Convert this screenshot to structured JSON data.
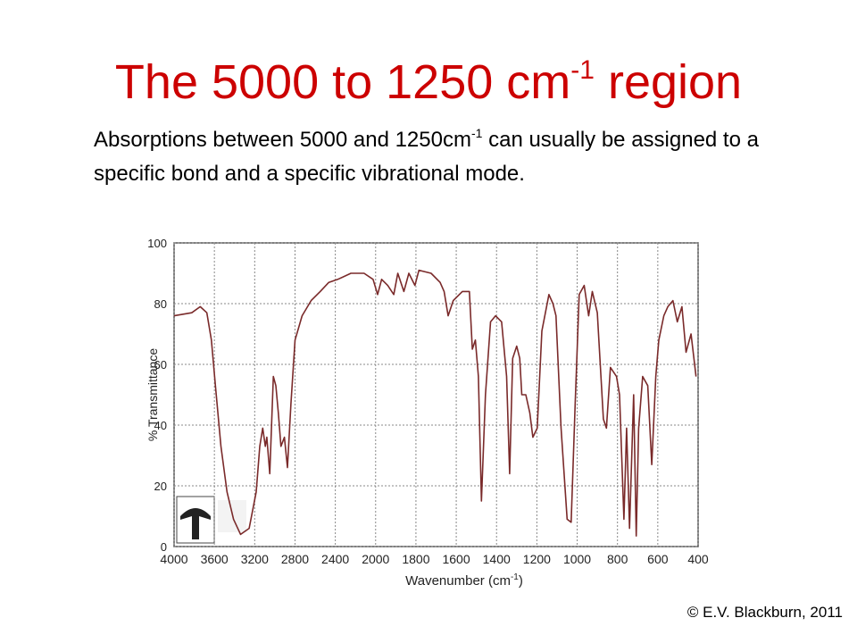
{
  "slide": {
    "title": [
      "The 5000 to 1250 cm",
      "-1",
      " region"
    ],
    "body": [
      "Absorptions between 5000 and 1250cm",
      "-1",
      " can usually be assigned to a specific bond and a specific vibrational mode."
    ],
    "copyright": "© E.V. Blackburn, 2011"
  },
  "chart_data": {
    "type": "line",
    "xlabel": [
      "Wavenumber (cm",
      "-1",
      ")"
    ],
    "ylabel": "% Transmittance",
    "xlim": [
      4000,
      400
    ],
    "ylim": [
      0,
      100
    ],
    "xticks": [
      4000,
      3600,
      3200,
      2800,
      2400,
      2000,
      1800,
      1600,
      1400,
      1200,
      1000,
      800,
      600,
      400
    ],
    "yticks": [
      0,
      20,
      40,
      60,
      80,
      100
    ],
    "grid": true,
    "series": [
      {
        "color": "#7a2a2a",
        "x": [
          4000,
          3825,
          3740,
          3675,
          3630,
          3590,
          3535,
          3475,
          3410,
          3340,
          3255,
          3185,
          3150,
          3120,
          3095,
          3080,
          3050,
          3015,
          2990,
          2965,
          2940,
          2905,
          2875,
          2840,
          2800,
          2730,
          2640,
          2550,
          2465,
          2375,
          2245,
          2115,
          2025,
          1990,
          1970,
          1940,
          1910,
          1890,
          1860,
          1835,
          1805,
          1785,
          1725,
          1680,
          1660,
          1640,
          1615,
          1570,
          1535,
          1520,
          1505,
          1490,
          1475,
          1455,
          1430,
          1405,
          1375,
          1350,
          1335,
          1320,
          1300,
          1285,
          1275,
          1255,
          1235,
          1220,
          1198,
          1175,
          1140,
          1120,
          1105,
          1080,
          1050,
          1030,
          1010,
          990,
          965,
          943,
          925,
          900,
          870,
          855,
          835,
          805,
          790,
          768,
          755,
          740,
          720,
          707,
          695,
          675,
          650,
          630,
          610,
          595,
          570,
          550,
          525,
          503,
          480,
          460,
          435,
          410
        ],
        "values": [
          76,
          77,
          79,
          77,
          68,
          53,
          33,
          18,
          9,
          4,
          6,
          18,
          33,
          39,
          33,
          36,
          24,
          56,
          53,
          44,
          33,
          36,
          26,
          47,
          68,
          76,
          81,
          84,
          87,
          88,
          90,
          90,
          88,
          83,
          88,
          86,
          83,
          90,
          84,
          90,
          86,
          91,
          90,
          87,
          84,
          76,
          81,
          84,
          84,
          65,
          68,
          56,
          15,
          50,
          74,
          76,
          74,
          56,
          24,
          62,
          66,
          62,
          50,
          50,
          44,
          36,
          39,
          71,
          83,
          80,
          76,
          39,
          9,
          8,
          47,
          83,
          86,
          76,
          84,
          77,
          42,
          39,
          59,
          56,
          50,
          9,
          39,
          6,
          50,
          3.5,
          39,
          56,
          53,
          27,
          56,
          68,
          76,
          79,
          81,
          74,
          79,
          64,
          70,
          56
        ]
      }
    ]
  }
}
